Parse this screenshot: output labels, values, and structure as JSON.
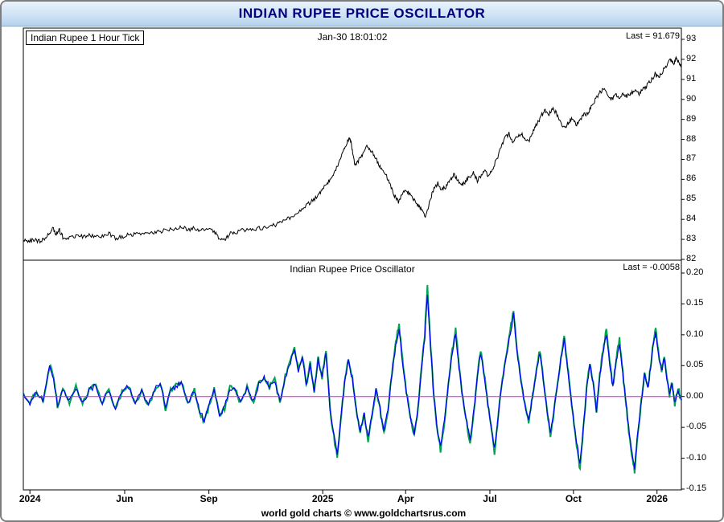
{
  "window": {
    "title": "INDIAN RUPEE PRICE OSCILLATOR"
  },
  "price_pane": {
    "label": "Indian Rupee 1 Hour Tick",
    "timestamp": "Jan-30 18:01:02",
    "last_label": "Last = 91.679"
  },
  "oscillator_pane": {
    "label": "Indian Rupee Price Oscillator",
    "last_label": "Last = -0.0058"
  },
  "footer": {
    "text": "world gold charts © www.goldchartsrus.com"
  },
  "xticks": [
    {
      "label": "2024",
      "pos": 0.01
    },
    {
      "label": "Jun",
      "pos": 0.154
    },
    {
      "label": "Sep",
      "pos": 0.282
    },
    {
      "label": "2025",
      "pos": 0.455
    },
    {
      "label": "Apr",
      "pos": 0.581
    },
    {
      "label": "Jul",
      "pos": 0.709
    },
    {
      "label": "Oct",
      "pos": 0.836
    },
    {
      "label": "2026",
      "pos": 0.963
    }
  ],
  "chart_data": [
    {
      "type": "line",
      "title": "Indian Rupee 1 Hour Tick",
      "last": 91.679,
      "ylim": [
        82,
        93
      ],
      "yticks": [
        93,
        92,
        91,
        90,
        89,
        88,
        87,
        86,
        85,
        84,
        83,
        82
      ],
      "tick_decimals": 0,
      "line_color": "#000000",
      "x_unit": "fraction-of-plot-width",
      "points": [
        [
          0.0,
          82.95
        ],
        [
          0.008,
          82.9
        ],
        [
          0.016,
          82.96
        ],
        [
          0.024,
          82.92
        ],
        [
          0.032,
          83.02
        ],
        [
          0.04,
          83.3
        ],
        [
          0.045,
          83.55
        ],
        [
          0.05,
          83.28
        ],
        [
          0.055,
          83.45
        ],
        [
          0.06,
          83.12
        ],
        [
          0.07,
          83.05
        ],
        [
          0.08,
          83.2
        ],
        [
          0.09,
          83.12
        ],
        [
          0.1,
          83.24
        ],
        [
          0.11,
          83.1
        ],
        [
          0.12,
          83.2
        ],
        [
          0.13,
          83.28
        ],
        [
          0.14,
          83.04
        ],
        [
          0.15,
          83.12
        ],
        [
          0.16,
          83.28
        ],
        [
          0.17,
          83.22
        ],
        [
          0.18,
          83.34
        ],
        [
          0.19,
          83.28
        ],
        [
          0.2,
          83.36
        ],
        [
          0.21,
          83.4
        ],
        [
          0.22,
          83.46
        ],
        [
          0.23,
          83.54
        ],
        [
          0.24,
          83.6
        ],
        [
          0.25,
          83.5
        ],
        [
          0.26,
          83.56
        ],
        [
          0.27,
          83.46
        ],
        [
          0.28,
          83.52
        ],
        [
          0.29,
          83.38
        ],
        [
          0.298,
          83.06
        ],
        [
          0.305,
          82.96
        ],
        [
          0.312,
          83.22
        ],
        [
          0.32,
          83.36
        ],
        [
          0.33,
          83.42
        ],
        [
          0.34,
          83.46
        ],
        [
          0.35,
          83.5
        ],
        [
          0.36,
          83.56
        ],
        [
          0.37,
          83.62
        ],
        [
          0.38,
          83.7
        ],
        [
          0.39,
          83.8
        ],
        [
          0.4,
          83.98
        ],
        [
          0.41,
          84.2
        ],
        [
          0.42,
          84.45
        ],
        [
          0.43,
          84.7
        ],
        [
          0.44,
          84.95
        ],
        [
          0.448,
          85.2
        ],
        [
          0.455,
          85.5
        ],
        [
          0.462,
          85.8
        ],
        [
          0.468,
          86.05
        ],
        [
          0.474,
          86.4
        ],
        [
          0.48,
          86.9
        ],
        [
          0.486,
          87.35
        ],
        [
          0.492,
          87.85
        ],
        [
          0.496,
          88.15
        ],
        [
          0.5,
          87.45
        ],
        [
          0.504,
          86.65
        ],
        [
          0.51,
          86.95
        ],
        [
          0.516,
          87.3
        ],
        [
          0.522,
          87.6
        ],
        [
          0.528,
          87.4
        ],
        [
          0.534,
          87.15
        ],
        [
          0.54,
          86.75
        ],
        [
          0.546,
          86.5
        ],
        [
          0.552,
          86.15
        ],
        [
          0.558,
          85.7
        ],
        [
          0.564,
          85.2
        ],
        [
          0.57,
          84.85
        ],
        [
          0.576,
          85.25
        ],
        [
          0.582,
          85.45
        ],
        [
          0.588,
          85.2
        ],
        [
          0.594,
          84.95
        ],
        [
          0.6,
          84.7
        ],
        [
          0.606,
          84.4
        ],
        [
          0.612,
          84.15
        ],
        [
          0.618,
          84.95
        ],
        [
          0.624,
          85.55
        ],
        [
          0.63,
          85.8
        ],
        [
          0.636,
          85.45
        ],
        [
          0.642,
          85.65
        ],
        [
          0.648,
          85.95
        ],
        [
          0.654,
          86.25
        ],
        [
          0.66,
          85.95
        ],
        [
          0.666,
          85.65
        ],
        [
          0.672,
          85.9
        ],
        [
          0.678,
          86.15
        ],
        [
          0.684,
          86.3
        ],
        [
          0.69,
          85.95
        ],
        [
          0.696,
          86.2
        ],
        [
          0.702,
          86.4
        ],
        [
          0.708,
          86.15
        ],
        [
          0.714,
          86.6
        ],
        [
          0.72,
          87.05
        ],
        [
          0.726,
          87.55
        ],
        [
          0.732,
          88.05
        ],
        [
          0.738,
          88.3
        ],
        [
          0.744,
          87.85
        ],
        [
          0.75,
          88.1
        ],
        [
          0.756,
          88.3
        ],
        [
          0.762,
          88.05
        ],
        [
          0.768,
          87.85
        ],
        [
          0.774,
          88.3
        ],
        [
          0.78,
          88.75
        ],
        [
          0.786,
          89.1
        ],
        [
          0.792,
          89.45
        ],
        [
          0.798,
          89.2
        ],
        [
          0.804,
          89.55
        ],
        [
          0.81,
          89.3
        ],
        [
          0.816,
          88.9
        ],
        [
          0.822,
          88.55
        ],
        [
          0.828,
          88.8
        ],
        [
          0.834,
          89.05
        ],
        [
          0.84,
          88.7
        ],
        [
          0.846,
          88.95
        ],
        [
          0.852,
          89.2
        ],
        [
          0.858,
          89.35
        ],
        [
          0.864,
          89.65
        ],
        [
          0.87,
          90.0
        ],
        [
          0.876,
          90.35
        ],
        [
          0.882,
          90.55
        ],
        [
          0.888,
          90.15
        ],
        [
          0.894,
          90.0
        ],
        [
          0.9,
          90.2
        ],
        [
          0.906,
          90.1
        ],
        [
          0.912,
          90.25
        ],
        [
          0.918,
          90.15
        ],
        [
          0.924,
          90.3
        ],
        [
          0.93,
          90.45
        ],
        [
          0.936,
          90.3
        ],
        [
          0.942,
          90.5
        ],
        [
          0.948,
          90.7
        ],
        [
          0.954,
          90.95
        ],
        [
          0.96,
          91.25
        ],
        [
          0.966,
          91.1
        ],
        [
          0.972,
          91.45
        ],
        [
          0.978,
          91.75
        ],
        [
          0.984,
          92.0
        ],
        [
          0.988,
          91.8
        ],
        [
          0.992,
          92.05
        ],
        [
          0.996,
          91.9
        ],
        [
          1.0,
          91.679
        ]
      ]
    },
    {
      "type": "line",
      "title": "Indian Rupee Price Oscillator",
      "last": -0.0058,
      "ylim": [
        -0.15,
        0.2
      ],
      "yticks": [
        0.2,
        0.15,
        0.1,
        0.05,
        0.0,
        -0.05,
        -0.1,
        -0.15
      ],
      "tick_decimals": 2,
      "colors": {
        "line": "#0000ee",
        "underlay": "#00a550",
        "zero_line": "#ff00ff"
      },
      "x_unit": "fraction-of-plot-width",
      "points": [
        [
          0.0,
          0.005
        ],
        [
          0.01,
          -0.01
        ],
        [
          0.02,
          0.008
        ],
        [
          0.03,
          -0.006
        ],
        [
          0.04,
          0.048
        ],
        [
          0.046,
          0.028
        ],
        [
          0.052,
          -0.015
        ],
        [
          0.06,
          0.01
        ],
        [
          0.07,
          -0.008
        ],
        [
          0.08,
          0.015
        ],
        [
          0.09,
          -0.012
        ],
        [
          0.1,
          0.01
        ],
        [
          0.11,
          0.018
        ],
        [
          0.12,
          -0.01
        ],
        [
          0.13,
          0.012
        ],
        [
          0.14,
          -0.02
        ],
        [
          0.15,
          0.008
        ],
        [
          0.16,
          0.016
        ],
        [
          0.17,
          -0.01
        ],
        [
          0.18,
          0.01
        ],
        [
          0.19,
          -0.014
        ],
        [
          0.2,
          0.012
        ],
        [
          0.208,
          0.022
        ],
        [
          0.216,
          -0.018
        ],
        [
          0.224,
          0.01
        ],
        [
          0.232,
          0.016
        ],
        [
          0.24,
          0.024
        ],
        [
          0.25,
          -0.012
        ],
        [
          0.26,
          0.01
        ],
        [
          0.268,
          -0.024
        ],
        [
          0.275,
          -0.038
        ],
        [
          0.282,
          -0.015
        ],
        [
          0.29,
          0.01
        ],
        [
          0.298,
          -0.03
        ],
        [
          0.306,
          -0.018
        ],
        [
          0.314,
          0.014
        ],
        [
          0.322,
          0.01
        ],
        [
          0.33,
          -0.01
        ],
        [
          0.34,
          0.014
        ],
        [
          0.35,
          -0.008
        ],
        [
          0.358,
          0.02
        ],
        [
          0.366,
          0.03
        ],
        [
          0.374,
          0.014
        ],
        [
          0.382,
          0.026
        ],
        [
          0.39,
          -0.01
        ],
        [
          0.398,
          0.03
        ],
        [
          0.406,
          0.055
        ],
        [
          0.412,
          0.078
        ],
        [
          0.418,
          0.04
        ],
        [
          0.424,
          0.062
        ],
        [
          0.43,
          0.018
        ],
        [
          0.436,
          0.05
        ],
        [
          0.442,
          0.008
        ],
        [
          0.448,
          0.06
        ],
        [
          0.454,
          0.03
        ],
        [
          0.46,
          0.072
        ],
        [
          0.466,
          -0.02
        ],
        [
          0.472,
          -0.062
        ],
        [
          0.477,
          -0.095
        ],
        [
          0.482,
          -0.04
        ],
        [
          0.488,
          0.02
        ],
        [
          0.494,
          0.06
        ],
        [
          0.5,
          0.028
        ],
        [
          0.506,
          -0.022
        ],
        [
          0.512,
          -0.055
        ],
        [
          0.518,
          -0.028
        ],
        [
          0.524,
          -0.068
        ],
        [
          0.53,
          -0.03
        ],
        [
          0.536,
          0.012
        ],
        [
          0.542,
          -0.02
        ],
        [
          0.548,
          -0.055
        ],
        [
          0.554,
          -0.022
        ],
        [
          0.56,
          0.035
        ],
        [
          0.566,
          0.082
        ],
        [
          0.571,
          0.112
        ],
        [
          0.576,
          0.058
        ],
        [
          0.582,
          0.008
        ],
        [
          0.588,
          -0.032
        ],
        [
          0.594,
          -0.06
        ],
        [
          0.6,
          -0.018
        ],
        [
          0.605,
          0.045
        ],
        [
          0.61,
          0.095
        ],
        [
          0.614,
          0.168
        ],
        [
          0.619,
          0.078
        ],
        [
          0.624,
          -0.002
        ],
        [
          0.629,
          -0.052
        ],
        [
          0.634,
          -0.082
        ],
        [
          0.64,
          -0.038
        ],
        [
          0.646,
          0.022
        ],
        [
          0.652,
          0.072
        ],
        [
          0.657,
          0.102
        ],
        [
          0.662,
          0.048
        ],
        [
          0.668,
          -0.004
        ],
        [
          0.674,
          -0.042
        ],
        [
          0.679,
          -0.072
        ],
        [
          0.685,
          -0.018
        ],
        [
          0.69,
          0.032
        ],
        [
          0.695,
          0.07
        ],
        [
          0.7,
          0.038
        ],
        [
          0.706,
          -0.012
        ],
        [
          0.711,
          -0.048
        ],
        [
          0.716,
          -0.085
        ],
        [
          0.722,
          -0.028
        ],
        [
          0.728,
          0.025
        ],
        [
          0.734,
          0.065
        ],
        [
          0.74,
          0.102
        ],
        [
          0.745,
          0.132
        ],
        [
          0.75,
          0.075
        ],
        [
          0.756,
          0.028
        ],
        [
          0.762,
          -0.012
        ],
        [
          0.768,
          -0.042
        ],
        [
          0.774,
          0.002
        ],
        [
          0.78,
          0.042
        ],
        [
          0.785,
          0.072
        ],
        [
          0.79,
          0.028
        ],
        [
          0.796,
          -0.022
        ],
        [
          0.801,
          -0.058
        ],
        [
          0.806,
          -0.028
        ],
        [
          0.812,
          0.022
        ],
        [
          0.817,
          0.06
        ],
        [
          0.822,
          0.092
        ],
        [
          0.827,
          0.048
        ],
        [
          0.832,
          -0.002
        ],
        [
          0.837,
          -0.045
        ],
        [
          0.842,
          -0.082
        ],
        [
          0.846,
          -0.112
        ],
        [
          0.851,
          -0.048
        ],
        [
          0.856,
          0.012
        ],
        [
          0.861,
          0.052
        ],
        [
          0.866,
          0.02
        ],
        [
          0.871,
          -0.022
        ],
        [
          0.876,
          0.032
        ],
        [
          0.881,
          0.072
        ],
        [
          0.886,
          0.102
        ],
        [
          0.891,
          0.055
        ],
        [
          0.896,
          0.015
        ],
        [
          0.901,
          0.058
        ],
        [
          0.906,
          0.088
        ],
        [
          0.911,
          0.038
        ],
        [
          0.916,
          -0.012
        ],
        [
          0.92,
          -0.052
        ],
        [
          0.925,
          -0.092
        ],
        [
          0.929,
          -0.115
        ],
        [
          0.934,
          -0.055
        ],
        [
          0.939,
          -0.008
        ],
        [
          0.944,
          0.035
        ],
        [
          0.949,
          0.012
        ],
        [
          0.953,
          0.045
        ],
        [
          0.957,
          0.082
        ],
        [
          0.961,
          0.105
        ],
        [
          0.965,
          0.068
        ],
        [
          0.97,
          0.04
        ],
        [
          0.974,
          0.062
        ],
        [
          0.978,
          0.03
        ],
        [
          0.982,
          0.002
        ],
        [
          0.986,
          0.022
        ],
        [
          0.99,
          -0.012
        ],
        [
          0.995,
          0.012
        ],
        [
          1.0,
          -0.0058
        ]
      ]
    }
  ]
}
